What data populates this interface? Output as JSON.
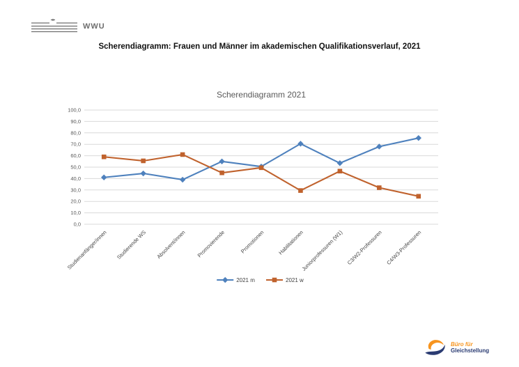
{
  "header": {
    "wwu_text": "WWU"
  },
  "page_title": "Scherendiagramm: Frauen und Männer im akademischen Qualifikationsverlauf, 2021",
  "chart_data": {
    "type": "line",
    "title": "Scherendiagramm 2021",
    "categories": [
      "Studienanfänger/innen",
      "Studierende WS",
      "Absolvent/innen",
      "Promovierende",
      "Promotionen",
      "Habilitationen",
      "Juniorprofessuren (W1)",
      "C3/W2-Professuren",
      "C4/W3-Professuren"
    ],
    "series": [
      {
        "name": "2021 m",
        "marker": "diamond",
        "color": "#4E81BD",
        "values": [
          41,
          44.5,
          39,
          55,
          50.5,
          70.5,
          53.5,
          68,
          75.5
        ]
      },
      {
        "name": "2021 w",
        "marker": "square",
        "color": "#C0622D",
        "values": [
          59,
          55.5,
          61,
          45,
          49.5,
          29.5,
          46.5,
          32,
          24.5
        ]
      }
    ],
    "ylim": [
      0,
      100
    ],
    "yticks": [
      "0,0",
      "10,0",
      "20,0",
      "30,0",
      "40,0",
      "50,0",
      "60,0",
      "70,0",
      "80,0",
      "90,0",
      "100,0"
    ],
    "grid": true,
    "legend_position": "bottom",
    "colors": {
      "grid": "#D9D9D9",
      "tick_label": "#595959",
      "axis_label": "#454545",
      "title": "#595959"
    }
  },
  "footer_logo": {
    "line1": "Büro für",
    "line2": "Gleichstellung",
    "colors": {
      "orange": "#F7941E",
      "navy": "#2A3B72"
    }
  }
}
